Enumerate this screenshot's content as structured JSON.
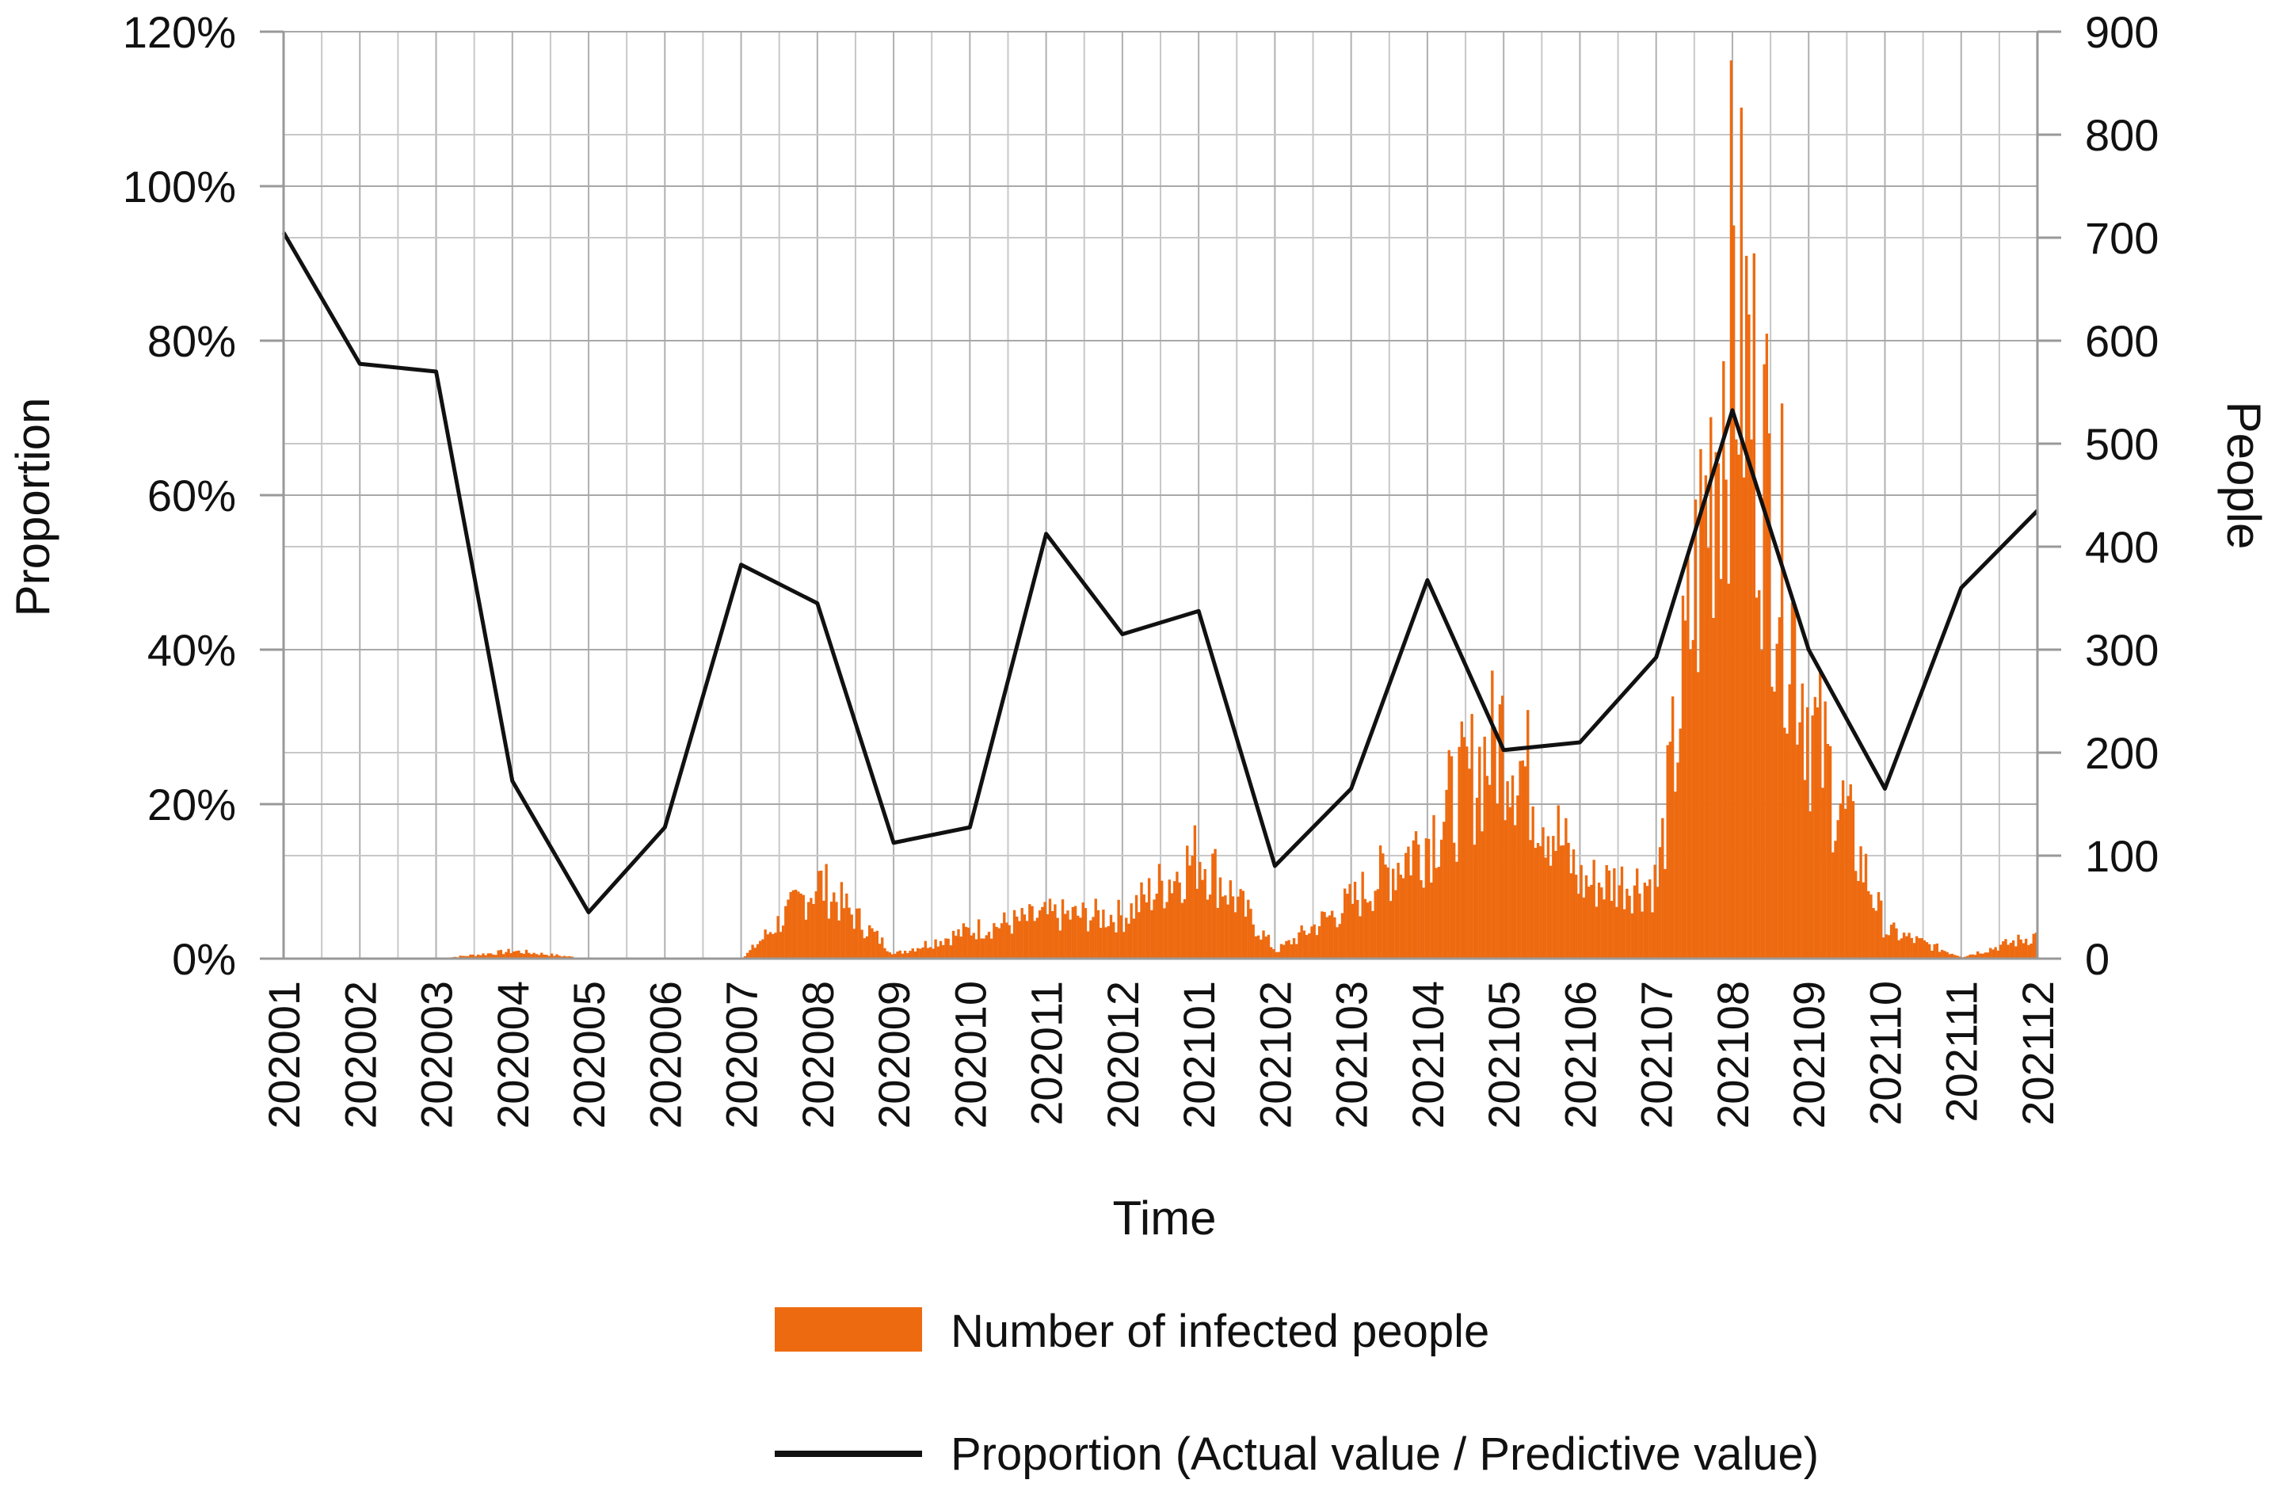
{
  "chart_data": {
    "type": "bar+line",
    "title": "",
    "xlabel": "Time",
    "ylabel_left": "Proportion",
    "ylabel_right": "People",
    "categories": [
      "202001",
      "202002",
      "202003",
      "202004",
      "202005",
      "202006",
      "202007",
      "202008",
      "202009",
      "202010",
      "202011",
      "202012",
      "202101",
      "202102",
      "202103",
      "202104",
      "202105",
      "202106",
      "202107",
      "202108",
      "202109",
      "202110",
      "202111",
      "202112"
    ],
    "y_left": {
      "min": 0,
      "max": 120,
      "ticks": [
        0,
        20,
        40,
        60,
        80,
        100,
        120
      ],
      "tick_labels": [
        "0%",
        "20%",
        "40%",
        "60%",
        "80%",
        "100%",
        "120%"
      ]
    },
    "y_right": {
      "min": 0,
      "max": 900,
      "ticks": [
        0,
        100,
        200,
        300,
        400,
        500,
        600,
        700,
        800,
        900
      ],
      "tick_labels": [
        "0",
        "100",
        "200",
        "300",
        "400",
        "500",
        "600",
        "700",
        "800",
        "900"
      ]
    },
    "grid": true,
    "series": [
      {
        "name": "Number of infected people",
        "type": "bar",
        "axis": "right",
        "color": "#EE6A10",
        "description": "daily infected counts (estimated envelope per month start)",
        "values": [
          0,
          0,
          0,
          8,
          0,
          0,
          0,
          80,
          5,
          30,
          45,
          45,
          110,
          8,
          60,
          130,
          240,
          80,
          80,
          700,
          250,
          30,
          2,
          25
        ]
      },
      {
        "name": "Proportion (Actual value / Predictive value)",
        "type": "line",
        "axis": "left",
        "color": "#111111",
        "values": [
          94,
          77,
          76,
          23,
          6,
          17,
          51,
          46,
          15,
          17,
          55,
          42,
          45,
          12,
          22,
          49,
          27,
          28,
          39,
          71,
          40,
          22,
          48,
          58
        ]
      }
    ],
    "legend": {
      "placement": "bottom-center",
      "items": [
        "Number of infected people",
        "Proportion (Actual value / Predictive value)"
      ]
    }
  }
}
